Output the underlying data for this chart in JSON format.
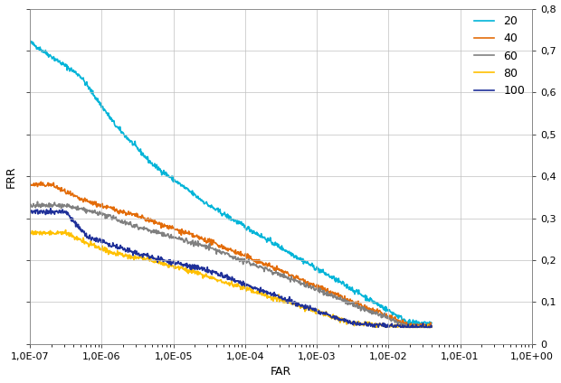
{
  "title": "",
  "xlabel": "FAR",
  "ylabel": "FRR",
  "series": [
    {
      "label": "20",
      "color": "#00B4D8",
      "linewidth": 1.2
    },
    {
      "label": "40",
      "color": "#E36C09",
      "linewidth": 1.2
    },
    {
      "label": "60",
      "color": "#808080",
      "linewidth": 1.2
    },
    {
      "label": "80",
      "color": "#FFC000",
      "linewidth": 1.2
    },
    {
      "label": "100",
      "color": "#1F3099",
      "linewidth": 1.2
    }
  ],
  "xmin": 1e-07,
  "xmax": 1.0,
  "ymin": 0,
  "ymax": 0.8,
  "yticks": [
    0,
    0.1,
    0.2,
    0.3,
    0.4,
    0.5,
    0.6,
    0.7,
    0.8
  ],
  "ytick_labels": [
    "0",
    "0,1",
    "0,2",
    "0,3",
    "0,4",
    "0,5",
    "0,6",
    "0,7",
    "0,8"
  ],
  "xtick_labels": [
    "1,0E-07",
    "1,0E-06",
    "1,0E-05",
    "1,0E-04",
    "1,0E-03",
    "1,0E-02",
    "1,0E-01",
    "1,0E+00"
  ],
  "xtick_values": [
    1e-07,
    1e-06,
    1e-05,
    0.0001,
    0.001,
    0.01,
    0.1,
    1.0
  ],
  "background_color": "#FFFFFF",
  "grid_color": "#C0C0C0"
}
